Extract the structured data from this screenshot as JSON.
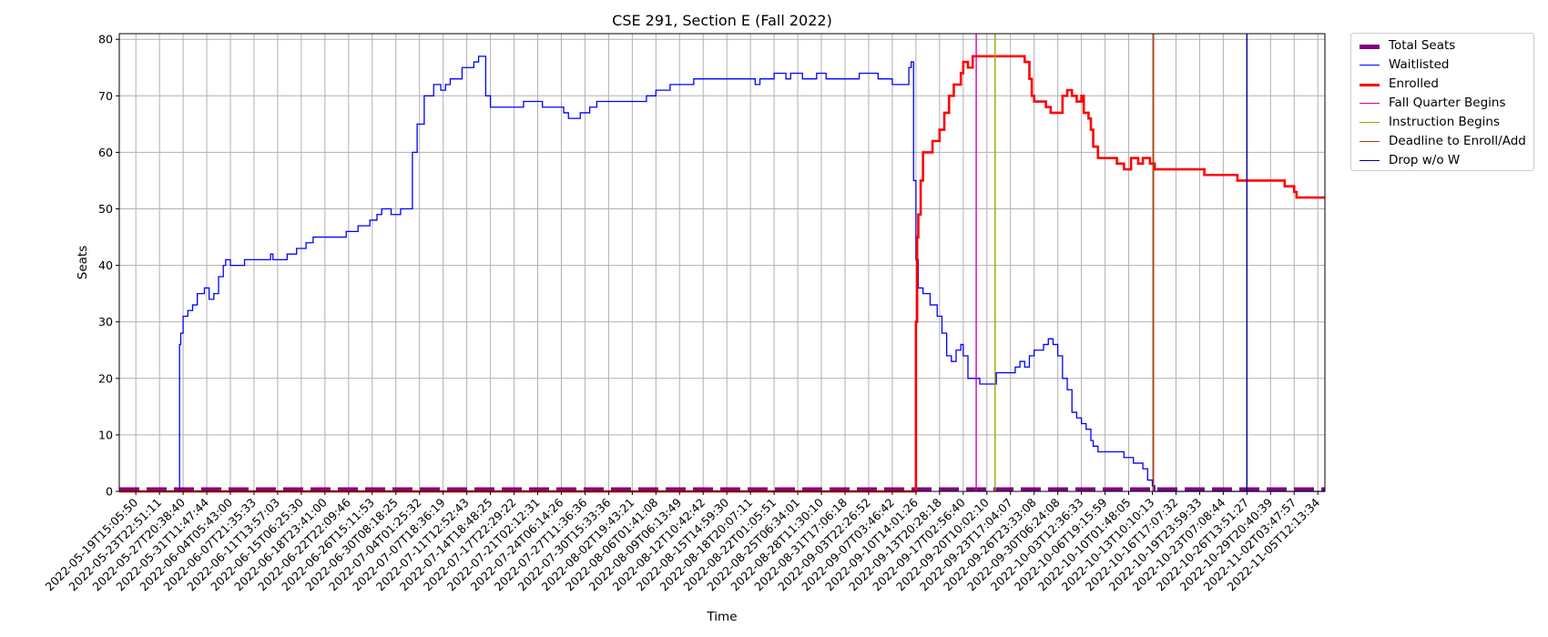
{
  "chart_data": {
    "type": "line",
    "title": "CSE 291, Section E (Fall 2022)",
    "xlabel": "Time",
    "ylabel": "Seats",
    "ylim": [
      0,
      81
    ],
    "grid": true,
    "legend_placement": "outside-top-right",
    "x_tick_labels": [
      "2022-05-19T15:05:50",
      "2022-05-23T22:51:11",
      "2022-05-27T20:38:40",
      "2022-05-31T11:47:44",
      "2022-06-04T05:43:00",
      "2022-06-07T21:35:33",
      "2022-06-11T13:57:03",
      "2022-06-15T06:25:30",
      "2022-06-18T23:41:00",
      "2022-06-22T22:09:46",
      "2022-06-26T15:11:53",
      "2022-06-30T08:18:25",
      "2022-07-04T01:25:32",
      "2022-07-07T18:36:19",
      "2022-07-11T12:52:43",
      "2022-07-14T18:48:25",
      "2022-07-17T22:29:22",
      "2022-07-21T02:12:31",
      "2022-07-24T06:14:26",
      "2022-07-27T11:36:36",
      "2022-07-30T15:33:36",
      "2022-08-02T19:43:21",
      "2022-08-06T01:41:08",
      "2022-08-09T06:13:49",
      "2022-08-12T10:42:42",
      "2022-08-15T14:59:30",
      "2022-08-18T20:07:11",
      "2022-08-22T01:05:51",
      "2022-08-25T06:34:01",
      "2022-08-28T11:30:10",
      "2022-08-31T17:06:18",
      "2022-09-03T22:26:52",
      "2022-09-07T03:46:42",
      "2022-09-10T14:01:26",
      "2022-09-13T20:28:18",
      "2022-09-17T02:56:40",
      "2022-09-20T10:02:10",
      "2022-09-23T17:04:07",
      "2022-09-26T23:33:08",
      "2022-09-30T06:24:08",
      "2022-10-03T12:36:33",
      "2022-10-06T19:15:59",
      "2022-10-10T01:48:05",
      "2022-10-13T10:10:13",
      "2022-10-16T17:07:32",
      "2022-10-19T23:59:33",
      "2022-10-23T07:08:44",
      "2022-10-26T13:51:27",
      "2022-10-29T20:40:39",
      "2022-11-02T03:47:57",
      "2022-11-05T12:13:34"
    ],
    "y_ticks": [
      0,
      10,
      20,
      30,
      40,
      50,
      60,
      70,
      80
    ],
    "x_domain": [
      -0.7,
      50.3
    ],
    "series": [
      {
        "name": "Total Seats",
        "color": "#800080",
        "style": "dashed-thick",
        "points": [
          [
            -0.7,
            0.4
          ],
          [
            50.3,
            0.4
          ]
        ]
      },
      {
        "name": "Waitlisted",
        "color": "#0000ff",
        "style": "step-thin",
        "points": [
          [
            -0.7,
            0
          ],
          [
            1.8,
            0
          ],
          [
            1.85,
            26
          ],
          [
            1.9,
            28
          ],
          [
            2.0,
            31
          ],
          [
            2.2,
            32
          ],
          [
            2.4,
            33
          ],
          [
            2.6,
            35
          ],
          [
            2.9,
            36
          ],
          [
            3.1,
            34
          ],
          [
            3.3,
            35
          ],
          [
            3.5,
            38
          ],
          [
            3.7,
            40
          ],
          [
            3.8,
            41
          ],
          [
            4.0,
            40
          ],
          [
            4.5,
            40
          ],
          [
            4.6,
            41
          ],
          [
            5.6,
            41
          ],
          [
            5.7,
            42
          ],
          [
            5.8,
            41
          ],
          [
            6.2,
            41
          ],
          [
            6.4,
            42
          ],
          [
            6.8,
            43
          ],
          [
            7.2,
            44
          ],
          [
            7.5,
            45
          ],
          [
            8.6,
            45
          ],
          [
            8.9,
            46
          ],
          [
            9.0,
            46
          ],
          [
            9.2,
            46
          ],
          [
            9.4,
            47
          ],
          [
            9.9,
            48
          ],
          [
            10.2,
            49
          ],
          [
            10.4,
            50
          ],
          [
            10.8,
            49
          ],
          [
            11.2,
            50
          ],
          [
            11.6,
            50
          ],
          [
            11.7,
            60
          ],
          [
            11.9,
            65
          ],
          [
            12.2,
            70
          ],
          [
            12.6,
            72
          ],
          [
            12.9,
            71
          ],
          [
            13.1,
            72
          ],
          [
            13.3,
            73
          ],
          [
            13.8,
            75
          ],
          [
            14.3,
            76
          ],
          [
            14.5,
            77
          ],
          [
            14.7,
            77
          ],
          [
            14.8,
            70
          ],
          [
            15.0,
            68
          ],
          [
            16.2,
            68
          ],
          [
            16.4,
            69
          ],
          [
            17.2,
            68
          ],
          [
            17.8,
            68
          ],
          [
            18.1,
            67
          ],
          [
            18.3,
            66
          ],
          [
            18.8,
            67
          ],
          [
            19.2,
            68
          ],
          [
            19.5,
            69
          ],
          [
            21.4,
            69
          ],
          [
            21.6,
            70
          ],
          [
            22.0,
            71
          ],
          [
            22.6,
            72
          ],
          [
            23.6,
            73
          ],
          [
            26.1,
            73
          ],
          [
            26.2,
            72
          ],
          [
            26.4,
            73
          ],
          [
            27.0,
            74
          ],
          [
            27.5,
            73
          ],
          [
            27.7,
            74
          ],
          [
            28.2,
            73
          ],
          [
            28.8,
            74
          ],
          [
            29.2,
            73
          ],
          [
            30.2,
            73
          ],
          [
            30.6,
            74
          ],
          [
            31.0,
            74
          ],
          [
            31.4,
            73
          ],
          [
            32.0,
            72
          ],
          [
            32.6,
            72
          ],
          [
            32.7,
            75
          ],
          [
            32.8,
            76
          ],
          [
            32.9,
            55
          ],
          [
            33.0,
            41
          ],
          [
            33.1,
            36
          ],
          [
            33.3,
            35
          ],
          [
            33.6,
            33
          ],
          [
            33.9,
            31
          ],
          [
            34.1,
            28
          ],
          [
            34.3,
            24
          ],
          [
            34.5,
            23
          ],
          [
            34.7,
            25
          ],
          [
            34.9,
            26
          ],
          [
            35.0,
            24
          ],
          [
            35.2,
            20
          ],
          [
            35.6,
            20
          ],
          [
            35.7,
            19
          ],
          [
            36.2,
            19
          ],
          [
            36.4,
            21
          ],
          [
            36.8,
            21
          ],
          [
            37.2,
            22
          ],
          [
            37.4,
            23
          ],
          [
            37.6,
            22
          ],
          [
            37.8,
            24
          ],
          [
            38.0,
            25
          ],
          [
            38.4,
            26
          ],
          [
            38.6,
            27
          ],
          [
            38.8,
            26
          ],
          [
            39.0,
            24
          ],
          [
            39.2,
            20
          ],
          [
            39.4,
            18
          ],
          [
            39.6,
            14
          ],
          [
            39.8,
            13
          ],
          [
            40.0,
            12
          ],
          [
            40.2,
            11
          ],
          [
            40.4,
            9
          ],
          [
            40.5,
            8
          ],
          [
            40.7,
            7
          ],
          [
            41.1,
            7
          ],
          [
            41.6,
            7
          ],
          [
            41.8,
            6
          ],
          [
            42.0,
            6
          ],
          [
            42.2,
            5
          ],
          [
            42.6,
            4
          ],
          [
            42.8,
            2
          ],
          [
            43.0,
            1
          ],
          [
            43.1,
            0
          ],
          [
            50.3,
            0
          ]
        ]
      },
      {
        "name": "Enrolled",
        "color": "#ff0000",
        "style": "step-thick",
        "points": [
          [
            -0.7,
            0
          ],
          [
            32.9,
            0
          ],
          [
            33.0,
            30
          ],
          [
            33.05,
            45
          ],
          [
            33.1,
            49
          ],
          [
            33.2,
            55
          ],
          [
            33.3,
            60
          ],
          [
            33.7,
            62
          ],
          [
            34.0,
            64
          ],
          [
            34.2,
            67
          ],
          [
            34.4,
            70
          ],
          [
            34.6,
            72
          ],
          [
            34.9,
            74
          ],
          [
            35.0,
            76
          ],
          [
            35.2,
            75
          ],
          [
            35.4,
            77
          ],
          [
            37.4,
            77
          ],
          [
            37.6,
            76
          ],
          [
            37.8,
            73
          ],
          [
            37.9,
            70
          ],
          [
            38.0,
            69
          ],
          [
            38.5,
            68
          ],
          [
            38.7,
            67
          ],
          [
            39.0,
            67
          ],
          [
            39.2,
            70
          ],
          [
            39.4,
            71
          ],
          [
            39.6,
            70
          ],
          [
            39.8,
            69
          ],
          [
            40.0,
            70
          ],
          [
            40.1,
            67
          ],
          [
            40.3,
            66
          ],
          [
            40.4,
            64
          ],
          [
            40.5,
            61
          ],
          [
            40.7,
            59
          ],
          [
            41.3,
            59
          ],
          [
            41.5,
            58
          ],
          [
            41.8,
            57
          ],
          [
            42.1,
            59
          ],
          [
            42.4,
            58
          ],
          [
            42.6,
            59
          ],
          [
            42.9,
            58
          ],
          [
            43.1,
            57
          ],
          [
            45.0,
            57
          ],
          [
            45.2,
            56
          ],
          [
            46.5,
            56
          ],
          [
            46.6,
            55
          ],
          [
            48.5,
            55
          ],
          [
            48.6,
            54
          ],
          [
            49.0,
            53
          ],
          [
            49.1,
            52
          ],
          [
            50.3,
            52
          ]
        ]
      }
    ],
    "vlines": [
      {
        "name": "Fall Quarter Begins",
        "x": 35.55,
        "color": "#dd00aa"
      },
      {
        "name": "Instruction Begins",
        "x": 36.35,
        "color": "#99aa00"
      },
      {
        "name": "Deadline to Enroll/Add",
        "x": 43.05,
        "color": "#bb3300"
      },
      {
        "name": "Drop w/o W",
        "x": 47.0,
        "color": "#000099"
      }
    ],
    "legend": [
      {
        "name": "Total Seats",
        "color": "#800080",
        "style": "thick"
      },
      {
        "name": "Waitlisted",
        "color": "#0000ff",
        "style": "thin"
      },
      {
        "name": "Enrolled",
        "color": "#ff0000",
        "style": "medium"
      },
      {
        "name": "Fall Quarter Begins",
        "color": "#dd00aa",
        "style": "thin"
      },
      {
        "name": "Instruction Begins",
        "color": "#99aa00",
        "style": "thin"
      },
      {
        "name": "Deadline to Enroll/Add",
        "color": "#bb3300",
        "style": "thin"
      },
      {
        "name": "Drop w/o W",
        "color": "#000099",
        "style": "thin"
      }
    ]
  }
}
